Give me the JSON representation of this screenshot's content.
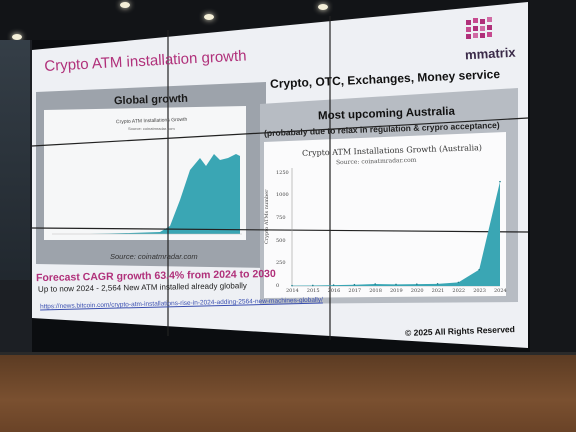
{
  "slide": {
    "title": "Crypto ATM installation growth",
    "brand": "mmatrix",
    "left_heading": "Global growth",
    "right_heading": "Crypto, OTC, Exchanges, Money service",
    "upcoming": "Most upcoming Australia",
    "upcoming_note": "(probabaly due to relax in regulation & crypro acceptance)",
    "source": "Source: coinatmradar.com",
    "forecast": "Forecast CAGR growth 63.4% from 2024 to 2030",
    "up_to_now": "Up to now 2024 - 2,564 New ATM installed already globally",
    "link": "https://news.bitcoin.com/crypto-atm-installations-rise-in-2024-adding-2564-new-machines-globally/",
    "copyright": "© 2025 All Rights Reserved"
  },
  "global_chart": {
    "title": "Crypto ATM Installations Growth",
    "source": "Source: coinatmradar.com"
  },
  "chart_data": {
    "type": "area",
    "title": "Crypto ATM Installations Growth (Australia)",
    "subtitle": "Source: coinatmradar.com",
    "ylabel": "Crypto ATMs number",
    "xlabel": "",
    "x": [
      "2014",
      "2015",
      "2016",
      "2017",
      "2018",
      "2019",
      "2020",
      "2021",
      "2022",
      "2023",
      "2024"
    ],
    "values": [
      4,
      6,
      10,
      14,
      22,
      18,
      20,
      24,
      40,
      180,
      1150
    ],
    "yticks": [
      0,
      250,
      500,
      750,
      1000,
      1250
    ],
    "ylim": [
      0,
      1300
    ],
    "color": "#3aa6b4"
  },
  "colors": {
    "accent": "#b0307a",
    "area": "#3aa6b4",
    "link": "#3a4fb0"
  }
}
